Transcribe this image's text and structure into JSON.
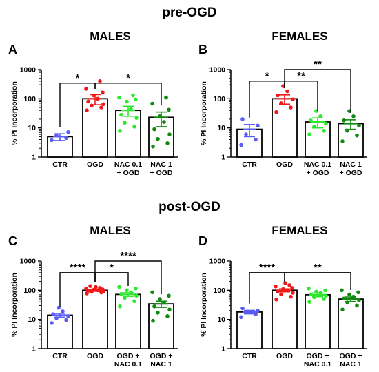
{
  "section_titles": {
    "pre": "pre-OGD",
    "post": "post-OGD"
  },
  "colors": {
    "CTR": "#5b5bf5",
    "OGD": "#f01818",
    "NAC_low": "#2ee82e",
    "NAC_high": "#0f8a0f",
    "bar_edge": "#000000"
  },
  "chart_data": [
    {
      "type": "bar",
      "panel": "A",
      "title": "MALES",
      "ylabel": "% PI Incorporation",
      "yscale": "log",
      "ylim": [
        1,
        1000
      ],
      "yticks": [
        "1",
        "10",
        "100",
        "1000"
      ],
      "categories": [
        [
          "CTR"
        ],
        [
          "OGD"
        ],
        [
          "NAC 0.1",
          "+ OGD"
        ],
        [
          "NAC 1",
          "+ OGD"
        ]
      ],
      "values": [
        5,
        100,
        40,
        23
      ],
      "sem": [
        1.3,
        38,
        15,
        12
      ],
      "points": [
        [
          3.8,
          4.5,
          5.5,
          7.2
        ],
        [
          40,
          50,
          58,
          65,
          80,
          100,
          130,
          165,
          220,
          400
        ],
        [
          8,
          11,
          15,
          22,
          28,
          45,
          80,
          95,
          110,
          130
        ],
        [
          2.3,
          3,
          4.2,
          6,
          9,
          16,
          25,
          42,
          68,
          110
        ]
      ],
      "point_colors": [
        "CTR",
        "OGD",
        "NAC_low",
        "NAC_high"
      ],
      "comparisons": [
        {
          "from": 0,
          "to": 1,
          "label": "*",
          "y": 340
        },
        {
          "from": 1,
          "to": 3,
          "label": "*",
          "y": 340
        }
      ]
    },
    {
      "type": "bar",
      "panel": "B",
      "title": "FEMALES",
      "ylabel": "% PI Incorporation",
      "yscale": "log",
      "ylim": [
        1,
        1000
      ],
      "yticks": [
        "1",
        "10",
        "100",
        "1000"
      ],
      "categories": [
        [
          "CTR"
        ],
        [
          "OGD"
        ],
        [
          "NAC 0.1",
          "+ OGD"
        ],
        [
          "NAC 1",
          "+ OGD"
        ]
      ],
      "values": [
        9,
        100,
        16,
        14
      ],
      "sem": [
        4,
        35,
        6,
        5
      ],
      "points": [
        [
          2.6,
          4,
          6,
          12,
          20
        ],
        [
          35,
          50,
          70,
          95,
          130,
          180,
          270
        ],
        [
          6,
          8,
          11,
          14,
          18,
          25,
          38
        ],
        [
          3.5,
          5.5,
          8,
          12,
          18,
          25,
          38
        ]
      ],
      "point_colors": [
        "CTR",
        "OGD",
        "NAC_low",
        "NAC_high"
      ],
      "comparisons": [
        {
          "from": 0,
          "to": 1,
          "label": "*",
          "y": 400
        },
        {
          "from": 1,
          "to": 2,
          "label": "**",
          "y": 400
        },
        {
          "from": 1,
          "to": 3,
          "label": "**",
          "y": 1000
        }
      ]
    },
    {
      "type": "bar",
      "panel": "C",
      "title": "MALES",
      "ylabel": "% PI Incorporation",
      "yscale": "log",
      "ylim": [
        1,
        1000
      ],
      "yticks": [
        "1",
        "10",
        "100",
        "1000"
      ],
      "categories": [
        [
          "CTR"
        ],
        [
          "OGD"
        ],
        [
          "OGD +",
          "NAC 0.1"
        ],
        [
          "OGD +",
          "NAC 1"
        ]
      ],
      "values": [
        14,
        100,
        72,
        34
      ],
      "sem": [
        2,
        8,
        10,
        8
      ],
      "points": [
        [
          7.5,
          9.5,
          11,
          13,
          15,
          19,
          25
        ],
        [
          78,
          84,
          88,
          92,
          96,
          100,
          104,
          108,
          115,
          120,
          130,
          140
        ],
        [
          28,
          42,
          55,
          65,
          75,
          85,
          100,
          115,
          130
        ],
        [
          9,
          13,
          17,
          22,
          28,
          38,
          50,
          65,
          85
        ]
      ],
      "point_colors": [
        "CTR",
        "OGD",
        "NAC_low",
        "NAC_high"
      ],
      "comparisons": [
        {
          "from": 0,
          "to": 1,
          "label": "****",
          "y": 400
        },
        {
          "from": 1,
          "to": 2,
          "label": "*",
          "y": 400
        },
        {
          "from": 1,
          "to": 3,
          "label": "****",
          "y": 1000
        }
      ]
    },
    {
      "type": "bar",
      "panel": "D",
      "title": "FEMALES",
      "ylabel": "% PI Incorporation",
      "yscale": "log",
      "ylim": [
        1,
        1000
      ],
      "yticks": [
        "1",
        "10",
        "100",
        "1000"
      ],
      "categories": [
        [
          "CTR"
        ],
        [
          "OGD"
        ],
        [
          "OGD +",
          "NAC 0.1"
        ],
        [
          "OGD +",
          "NAC 1"
        ]
      ],
      "values": [
        18,
        100,
        70,
        50
      ],
      "sem": [
        2.5,
        12,
        10,
        9
      ],
      "points": [
        [
          12,
          15,
          18,
          20,
          24
        ],
        [
          48,
          60,
          72,
          82,
          92,
          100,
          110,
          120,
          135,
          150,
          175
        ],
        [
          40,
          50,
          58,
          65,
          72,
          80,
          90,
          100,
          115
        ],
        [
          22,
          30,
          38,
          45,
          52,
          60,
          72,
          85,
          100
        ]
      ],
      "point_colors": [
        "CTR",
        "OGD",
        "NAC_low",
        "NAC_high"
      ],
      "comparisons": [
        {
          "from": 0,
          "to": 1,
          "label": "****",
          "y": 400
        },
        {
          "from": 1,
          "to": 3,
          "label": "**",
          "y": 400
        }
      ]
    }
  ]
}
